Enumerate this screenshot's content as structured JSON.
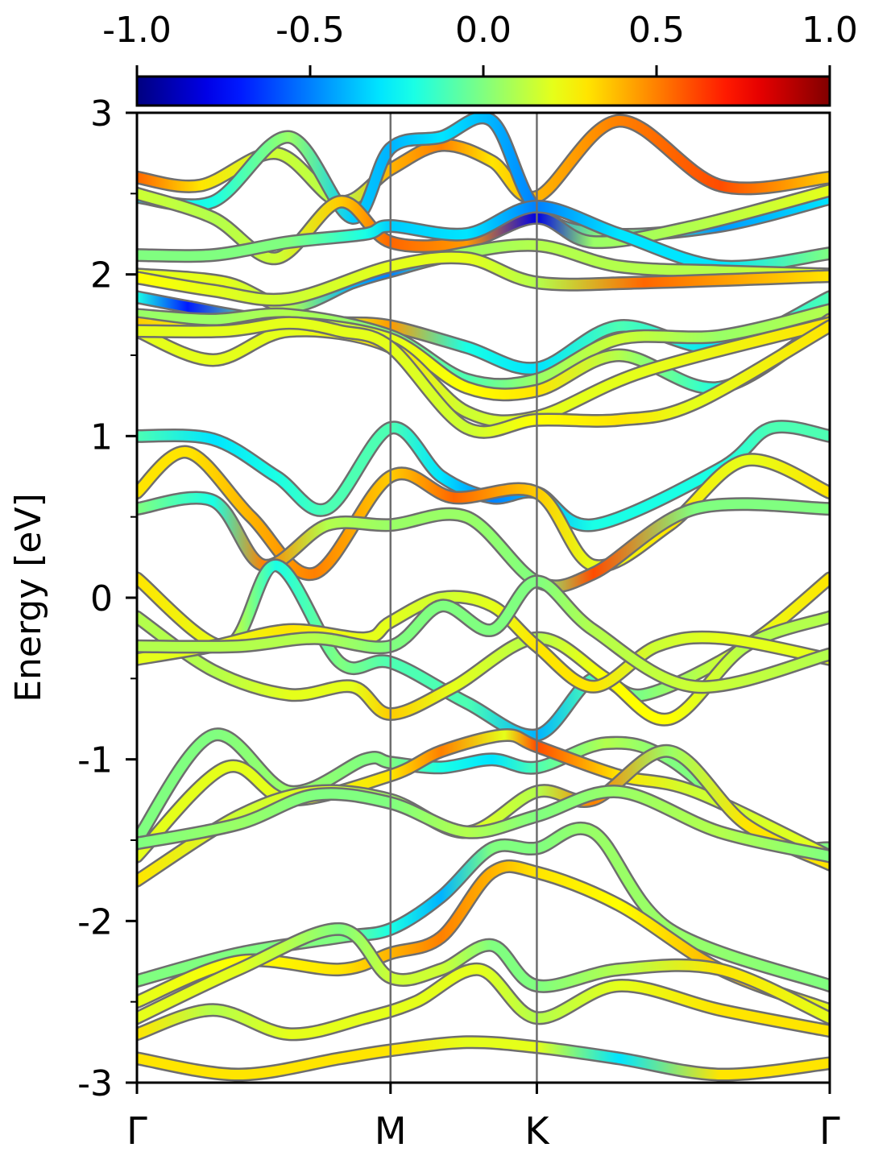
{
  "chart_data": {
    "type": "line",
    "title": "",
    "ylabel": "Energy [eV]",
    "xlabel": "",
    "ylim": [
      -3,
      3
    ],
    "y_major_ticks": [
      3,
      2,
      1,
      0,
      -1,
      -2,
      -3
    ],
    "y_tick_labels": [
      "3",
      "2",
      "1",
      "0",
      "-1",
      "-2",
      "-3"
    ],
    "y_minor_ticks": [
      2.5,
      1.5,
      0.5,
      -0.5,
      -1.5,
      -2.5
    ],
    "x_ticks": [
      {
        "label": "Γ",
        "pos": 0.0
      },
      {
        "label": "M",
        "pos": 1.0
      },
      {
        "label": "K",
        "pos": 1.577
      },
      {
        "label": "Γ",
        "pos": 2.732
      }
    ],
    "high_symmetry_lines": [
      "M",
      "K"
    ],
    "colorbar": {
      "colormap": "jet",
      "range": [
        -1.0,
        1.0
      ],
      "tick_labels": [
        "-1.0",
        "-0.5",
        "0.0",
        "0.5",
        "1.0"
      ],
      "tick_values": [
        -1.0,
        -0.5,
        0.0,
        0.5,
        1.0
      ],
      "location": "top"
    },
    "line_outline_color": "#6e6e6e",
    "series": [
      {
        "x": [
          0,
          0.25,
          0.55,
          0.8,
          1.0,
          1.2,
          1.4,
          1.577,
          1.9,
          2.3,
          2.732
        ],
        "y": [
          2.6,
          2.55,
          2.75,
          2.45,
          2.65,
          2.8,
          2.7,
          2.48,
          2.95,
          2.55,
          2.6
        ],
        "c": [
          0.55,
          0.3,
          0.15,
          0.1,
          0.4,
          0.5,
          0.3,
          0.4,
          0.5,
          0.6,
          0.35
        ]
      },
      {
        "x": [
          0,
          0.3,
          0.6,
          0.85,
          1.0,
          1.2,
          1.4,
          1.577,
          1.85,
          2.3,
          2.732
        ],
        "y": [
          2.48,
          2.45,
          2.85,
          2.35,
          2.78,
          2.85,
          2.95,
          2.4,
          2.25,
          2.3,
          2.47
        ],
        "c": [
          -0.3,
          -0.2,
          0.05,
          -0.35,
          -0.4,
          -0.3,
          -0.4,
          -0.5,
          0.05,
          -0.45,
          -0.3
        ]
      },
      {
        "x": [
          0,
          0.3,
          0.55,
          0.8,
          1.0,
          1.3,
          1.577,
          1.8,
          2.2,
          2.732
        ],
        "y": [
          2.5,
          2.35,
          2.1,
          2.45,
          2.2,
          2.2,
          2.35,
          2.2,
          2.3,
          2.52
        ],
        "c": [
          0.15,
          0.1,
          0.15,
          0.35,
          0.55,
          0.45,
          -0.8,
          0.05,
          0.1,
          0.2
        ]
      },
      {
        "x": [
          0,
          0.3,
          0.6,
          0.9,
          1.0,
          1.3,
          1.577,
          1.9,
          2.3,
          2.732
        ],
        "y": [
          2.12,
          2.12,
          2.2,
          2.25,
          2.3,
          2.25,
          2.42,
          2.25,
          2.05,
          2.13
        ],
        "c": [
          0.0,
          0.0,
          0.0,
          -0.2,
          -0.35,
          -0.3,
          -0.5,
          -0.3,
          -0.3,
          0.0
        ]
      },
      {
        "x": [
          0,
          0.35,
          0.6,
          0.85,
          1.0,
          1.25,
          1.577,
          1.9,
          2.3,
          2.732
        ],
        "y": [
          2.0,
          1.95,
          1.8,
          1.95,
          2.02,
          2.12,
          2.18,
          2.05,
          2.02,
          2.0
        ],
        "c": [
          0.2,
          0.2,
          0.1,
          -0.4,
          -0.5,
          0.05,
          0.1,
          0.1,
          0.1,
          0.2
        ]
      },
      {
        "x": [
          0,
          0.3,
          0.6,
          1.0,
          1.3,
          1.577,
          2.0,
          2.732
        ],
        "y": [
          1.98,
          1.9,
          1.85,
          2.05,
          2.1,
          1.95,
          1.95,
          1.99
        ],
        "c": [
          0.25,
          0.2,
          0.15,
          0.2,
          0.2,
          0.1,
          0.55,
          0.3
        ]
      },
      {
        "x": [
          0,
          0.2,
          0.5,
          0.8,
          1.0,
          1.3,
          1.577,
          1.9,
          2.3,
          2.732
        ],
        "y": [
          1.86,
          1.8,
          1.72,
          1.7,
          1.68,
          1.55,
          1.42,
          1.68,
          1.55,
          1.86
        ],
        "c": [
          -0.2,
          -0.7,
          0.0,
          0.2,
          0.45,
          -0.2,
          -0.3,
          -0.1,
          -0.3,
          -0.1
        ]
      },
      {
        "x": [
          0,
          0.3,
          0.6,
          1.0,
          1.3,
          1.577,
          1.9,
          2.3,
          2.732
        ],
        "y": [
          1.75,
          1.72,
          1.75,
          1.62,
          1.35,
          1.35,
          1.6,
          1.62,
          1.78
        ],
        "c": [
          0.05,
          0.05,
          0.1,
          0.0,
          -0.1,
          0.05,
          0.15,
          0.05,
          0.1
        ]
      },
      {
        "x": [
          0,
          0.3,
          0.6,
          1.0,
          1.3,
          1.577,
          1.9,
          2.3,
          2.732
        ],
        "y": [
          1.7,
          1.65,
          1.7,
          1.6,
          1.3,
          1.28,
          1.5,
          1.3,
          1.72
        ],
        "c": [
          0.35,
          0.2,
          0.1,
          0.2,
          0.25,
          0.3,
          0.1,
          -0.2,
          0.3
        ]
      },
      {
        "x": [
          0,
          0.3,
          0.6,
          1.0,
          1.3,
          1.577,
          2.0,
          2.732
        ],
        "y": [
          1.65,
          1.47,
          1.65,
          1.55,
          1.15,
          1.12,
          1.4,
          1.7
        ],
        "c": [
          0.2,
          0.2,
          0.2,
          0.3,
          0.15,
          0.2,
          0.2,
          0.3
        ]
      },
      {
        "x": [
          0,
          0.35,
          0.6,
          0.8,
          1.0,
          1.3,
          1.577,
          1.9,
          2.2,
          2.732
        ],
        "y": [
          1.65,
          1.65,
          1.7,
          1.65,
          1.55,
          1.05,
          1.1,
          1.1,
          1.2,
          1.68
        ],
        "c": [
          0.2,
          0.2,
          0.2,
          0.2,
          0.2,
          0.15,
          0.25,
          0.3,
          0.2,
          0.3
        ]
      },
      {
        "x": [
          0,
          0.3,
          0.55,
          0.75,
          1.0,
          1.2,
          1.4,
          1.577,
          1.8,
          2.3,
          2.5,
          2.732
        ],
        "y": [
          1.0,
          0.98,
          0.75,
          0.55,
          1.05,
          0.75,
          0.62,
          0.65,
          0.45,
          0.8,
          1.05,
          1.0
        ],
        "c": [
          -0.1,
          -0.3,
          -0.2,
          -0.1,
          -0.1,
          -0.3,
          -0.5,
          -0.4,
          -0.2,
          -0.2,
          -0.1,
          -0.1
        ]
      },
      {
        "x": [
          0,
          0.2,
          0.45,
          0.7,
          1.0,
          1.25,
          1.577,
          1.8,
          2.1,
          2.4,
          2.732
        ],
        "y": [
          0.65,
          0.9,
          0.5,
          0.15,
          0.75,
          0.62,
          0.65,
          0.2,
          0.45,
          0.85,
          0.65
        ],
        "c": [
          0.3,
          0.3,
          0.4,
          0.5,
          0.35,
          0.55,
          0.35,
          0.2,
          0.3,
          0.2,
          0.3
        ]
      },
      {
        "x": [
          0,
          0.3,
          0.5,
          0.75,
          1.0,
          1.3,
          1.577,
          1.8,
          2.2,
          2.732
        ],
        "y": [
          0.55,
          0.6,
          0.2,
          0.45,
          0.45,
          0.5,
          0.1,
          0.15,
          0.55,
          0.55
        ],
        "c": [
          0.0,
          -0.2,
          0.5,
          0.1,
          0.05,
          0.05,
          0.0,
          0.6,
          0.0,
          0.0
        ]
      },
      {
        "x": [
          0,
          0.35,
          0.55,
          0.8,
          1.0,
          1.3,
          1.577,
          1.8,
          2.0,
          2.4,
          2.732
        ],
        "y": [
          0.12,
          -0.3,
          0.2,
          -0.4,
          -0.4,
          -0.65,
          -0.85,
          -0.5,
          -0.6,
          -0.3,
          0.12
        ],
        "c": [
          0.3,
          0.2,
          -0.2,
          0.0,
          -0.1,
          -0.1,
          -0.4,
          -0.1,
          0.0,
          0.2,
          0.3
        ]
      },
      {
        "x": [
          0,
          0.3,
          0.6,
          0.85,
          1.0,
          1.25,
          1.577,
          1.85,
          2.1,
          2.4,
          2.732
        ],
        "y": [
          -0.12,
          -0.45,
          -0.6,
          -0.55,
          -0.72,
          -0.55,
          -0.25,
          -0.5,
          -0.75,
          -0.3,
          -0.12
        ],
        "c": [
          0.1,
          0.1,
          0.2,
          0.2,
          0.35,
          0.2,
          0.1,
          0.25,
          0.25,
          0.1,
          0.1
        ]
      },
      {
        "x": [
          0,
          0.3,
          0.6,
          0.9,
          1.0,
          1.2,
          1.4,
          1.577,
          1.8,
          2.05,
          2.3,
          2.732
        ],
        "y": [
          -0.38,
          -0.3,
          -0.2,
          -0.25,
          -0.15,
          0.0,
          -0.05,
          -0.3,
          -0.55,
          -0.3,
          -0.25,
          -0.38
        ],
        "c": [
          0.2,
          0.2,
          0.3,
          0.2,
          0.2,
          0.15,
          0.2,
          0.3,
          0.3,
          0.15,
          0.2,
          0.2
        ]
      },
      {
        "x": [
          0,
          0.4,
          0.7,
          1.0,
          1.2,
          1.4,
          1.577,
          1.8,
          2.2,
          2.732
        ],
        "y": [
          -0.3,
          -0.3,
          -0.25,
          -0.3,
          -0.05,
          -0.2,
          0.1,
          -0.2,
          -0.55,
          -0.35
        ],
        "c": [
          0.1,
          0.1,
          0.1,
          0.0,
          0.0,
          0.0,
          0.0,
          0.1,
          0.15,
          0.1
        ]
      },
      {
        "x": [
          0,
          0.3,
          0.6,
          0.9,
          1.0,
          1.2,
          1.4,
          1.577,
          1.85,
          2.1,
          2.5,
          2.732
        ],
        "y": [
          -1.5,
          -0.85,
          -1.2,
          -1.0,
          -1.02,
          -1.05,
          -1.0,
          -1.05,
          -0.9,
          -1.0,
          -1.5,
          -1.55
        ],
        "c": [
          0.0,
          0.0,
          0.05,
          0.0,
          0.0,
          -0.2,
          -0.3,
          -0.1,
          0.1,
          0.0,
          0.0,
          0.0
        ]
      },
      {
        "x": [
          0,
          0.35,
          0.6,
          1.0,
          1.2,
          1.45,
          1.577,
          1.9,
          2.2,
          2.732
        ],
        "y": [
          -1.6,
          -1.05,
          -1.25,
          -1.1,
          -0.95,
          -0.85,
          -0.92,
          -1.1,
          -1.2,
          -1.6
        ],
        "c": [
          0.2,
          0.2,
          0.2,
          0.3,
          0.5,
          0.2,
          0.6,
          0.3,
          0.15,
          0.2
        ]
      },
      {
        "x": [
          0,
          0.4,
          0.7,
          1.0,
          1.3,
          1.577,
          1.8,
          2.1,
          2.4,
          2.732
        ],
        "y": [
          -1.75,
          -1.35,
          -1.2,
          -1.25,
          -1.45,
          -1.2,
          -1.25,
          -0.95,
          -1.4,
          -1.65
        ],
        "c": [
          0.3,
          0.15,
          0.2,
          0.05,
          0.2,
          0.1,
          0.5,
          0.05,
          0.3,
          0.3
        ]
      },
      {
        "x": [
          0,
          0.4,
          0.7,
          1.0,
          1.3,
          1.577,
          1.9,
          2.3,
          2.732
        ],
        "y": [
          -1.52,
          -1.4,
          -1.22,
          -1.27,
          -1.45,
          -1.35,
          -1.2,
          -1.45,
          -1.6
        ],
        "c": [
          0.0,
          0.05,
          0.0,
          0.0,
          0.1,
          0.0,
          0.05,
          0.1,
          0.0
        ]
      },
      {
        "x": [
          0,
          0.4,
          0.8,
          1.0,
          1.2,
          1.4,
          1.577,
          1.8,
          2.1,
          2.732
        ],
        "y": [
          -2.37,
          -2.2,
          -2.1,
          -2.05,
          -1.85,
          -1.55,
          -1.55,
          -1.45,
          -2.05,
          -2.4
        ],
        "c": [
          0.0,
          0.0,
          0.0,
          -0.2,
          -0.4,
          0.0,
          0.0,
          0.05,
          0.05,
          0.0
        ]
      },
      {
        "x": [
          0,
          0.4,
          0.8,
          1.0,
          1.2,
          1.4,
          1.577,
          1.9,
          2.3,
          2.732
        ],
        "y": [
          -2.5,
          -2.25,
          -2.3,
          -2.2,
          -2.1,
          -1.7,
          -1.7,
          -1.9,
          -2.3,
          -2.55
        ],
        "c": [
          0.2,
          0.25,
          0.3,
          0.4,
          0.5,
          0.4,
          0.3,
          0.25,
          0.4,
          0.2
        ]
      },
      {
        "x": [
          0,
          0.4,
          0.8,
          1.0,
          1.2,
          1.4,
          1.577,
          1.9,
          2.3,
          2.732
        ],
        "y": [
          -2.6,
          -2.3,
          -2.05,
          -2.35,
          -2.3,
          -2.15,
          -2.4,
          -2.3,
          -2.3,
          -2.6
        ],
        "c": [
          0.2,
          0.2,
          0.0,
          0.15,
          0.15,
          0.0,
          0.0,
          0.1,
          0.3,
          0.2
        ]
      },
      {
        "x": [
          0,
          0.3,
          0.6,
          0.9,
          1.1,
          1.35,
          1.577,
          1.9,
          2.3,
          2.732
        ],
        "y": [
          -2.7,
          -2.55,
          -2.7,
          -2.6,
          -2.5,
          -2.3,
          -2.6,
          -2.4,
          -2.55,
          -2.68
        ],
        "c": [
          0.3,
          0.1,
          0.2,
          0.2,
          0.2,
          0.2,
          0.1,
          0.2,
          0.3,
          0.3
        ]
      },
      {
        "x": [
          0,
          0.4,
          0.8,
          1.0,
          1.3,
          1.577,
          1.9,
          2.3,
          2.732
        ],
        "y": [
          -2.85,
          -2.95,
          -2.85,
          -2.8,
          -2.75,
          -2.78,
          -2.85,
          -2.95,
          -2.88
        ],
        "c": [
          0.3,
          0.3,
          0.3,
          0.3,
          0.2,
          0.2,
          -0.3,
          0.3,
          0.3
        ]
      }
    ]
  }
}
